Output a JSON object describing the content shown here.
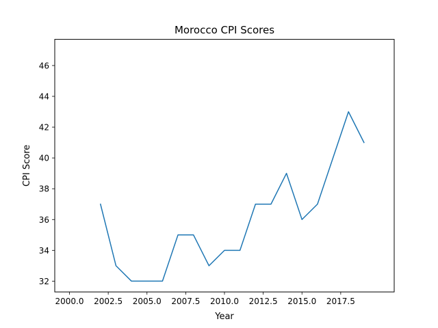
{
  "chart_data": {
    "type": "line",
    "title": "Morocco CPI Scores",
    "xlabel": "Year",
    "ylabel": "CPI Score",
    "xlim": [
      1999.05,
      2020.95
    ],
    "ylim": [
      31.3,
      47.7
    ],
    "xticks": [
      2000.0,
      2002.5,
      2005.0,
      2007.5,
      2010.0,
      2012.5,
      2015.0,
      2017.5
    ],
    "xtick_labels": [
      "2000.0",
      "2002.5",
      "2005.0",
      "2007.5",
      "2010.0",
      "2012.5",
      "2015.0",
      "2017.5"
    ],
    "yticks": [
      32,
      34,
      36,
      38,
      40,
      42,
      44,
      46
    ],
    "ytick_labels": [
      "32",
      "34",
      "36",
      "38",
      "40",
      "42",
      "44",
      "46"
    ],
    "grid": false,
    "series": [
      {
        "color": "#1f77b4",
        "x": [
          2002,
          2003,
          2004,
          2005,
          2006,
          2007,
          2008,
          2009,
          2010,
          2011,
          2012,
          2013,
          2014,
          2015,
          2016,
          2017,
          2018,
          2019
        ],
        "y": [
          37,
          33,
          32,
          32,
          32,
          35,
          35,
          33,
          34,
          34,
          37,
          37,
          39,
          36,
          37,
          40,
          43,
          41
        ]
      }
    ]
  }
}
